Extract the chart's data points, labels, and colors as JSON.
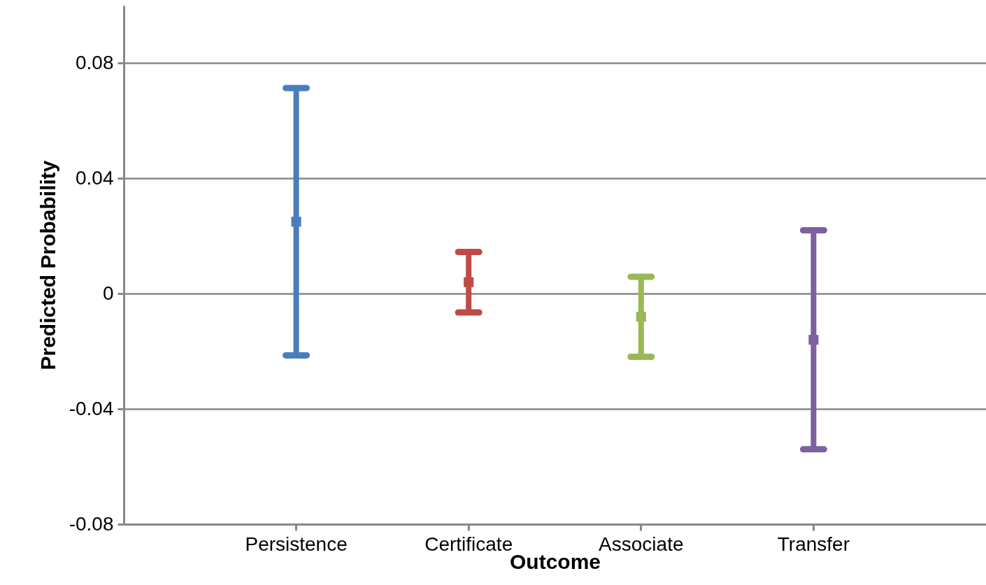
{
  "chart_data": {
    "type": "scatter",
    "xlabel": "Outcome",
    "ylabel": "Predicted Probability",
    "categories": [
      "Persistence",
      "Certificate",
      "Associate",
      "Transfer"
    ],
    "values": [
      0.025,
      0.004,
      -0.008,
      -0.016
    ],
    "errors": [
      0.0464,
      0.0105,
      0.0139,
      0.038
    ],
    "colors": [
      "#4a7ebb",
      "#be4b48",
      "#98b954",
      "#7d60a0"
    ],
    "ylim": [
      -0.08,
      0.1
    ],
    "yticks": [
      -0.08,
      -0.04,
      0,
      0.04,
      0.08
    ],
    "grid": "y",
    "marker": "square"
  }
}
